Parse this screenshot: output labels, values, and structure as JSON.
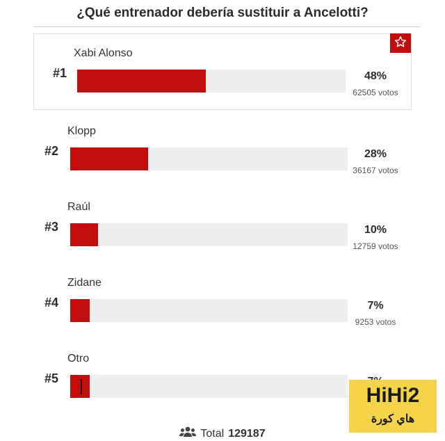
{
  "title": "¿Qué entrenador debería sustituir a Ancelotti?",
  "accent_color": "#c20d0d",
  "results": [
    {
      "rank": "#1",
      "name": "Xabi Alonso",
      "percent": "48%",
      "votes": "62505 votos",
      "share": 0.48
    },
    {
      "rank": "#2",
      "name": "Klopp",
      "percent": "28%",
      "votes": "36167 votos",
      "share": 0.28
    },
    {
      "rank": "#3",
      "name": "Raúl",
      "percent": "10%",
      "votes": "12759 votos",
      "share": 0.1
    },
    {
      "rank": "#4",
      "name": "Zidane",
      "percent": "7%",
      "votes": "9253 votos",
      "share": 0.07
    },
    {
      "rank": "#5",
      "name": "Otro",
      "percent": "7%",
      "votes": "",
      "share": 0.07
    }
  ],
  "winner_icon": "star-icon",
  "total": {
    "icon": "users-icon",
    "label": "Total",
    "value": "129187"
  },
  "watermark": {
    "name": "HiHi2",
    "subtitle": "هاي كورة"
  }
}
